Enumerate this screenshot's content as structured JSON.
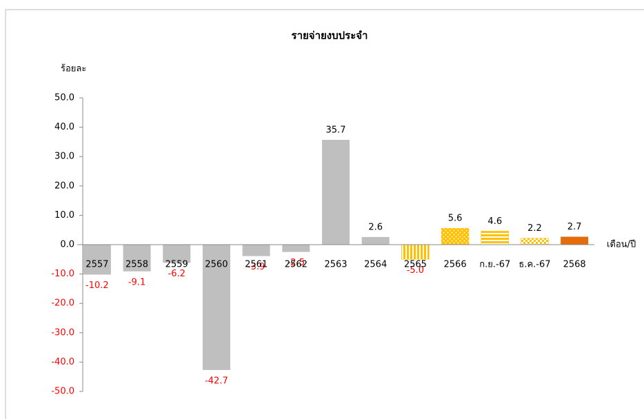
{
  "chart_data": {
    "type": "bar",
    "title": "รายจ่ายงบประจำ",
    "y_label": "ร้อยละ",
    "x_label": "เดือน/ปี",
    "categories": [
      "2557",
      "2558",
      "2559",
      "2560",
      "2561",
      "2562",
      "2563",
      "2564",
      "2565",
      "2566",
      "ก.ย.-67",
      "ธ.ค.-67",
      "2568"
    ],
    "values": [
      -10.2,
      -9.1,
      -6.2,
      -42.7,
      -3.9,
      -2.5,
      35.7,
      2.6,
      -5.0,
      5.6,
      4.6,
      2.2,
      2.7
    ],
    "value_labels": [
      "-10.2",
      "-9.1",
      "-6.2",
      "-42.7",
      "-3.9",
      "-2.5",
      "35.7",
      "2.6",
      "-5.0",
      "5.6",
      "4.6",
      "2.2",
      "2.7"
    ],
    "colors": [
      "#bfbfbf",
      "#bfbfbf",
      "#bfbfbf",
      "#bfbfbf",
      "#bfbfbf",
      "#bfbfbf",
      "#bfbfbf",
      "#bfbfbf",
      "#ffc000",
      "#ffc000",
      "#ffc000",
      "#ffc000",
      "#e46c0a"
    ],
    "patterns": [
      "solid",
      "solid",
      "solid",
      "solid",
      "solid",
      "solid",
      "solid",
      "solid",
      "vertical-stripes",
      "dots",
      "horizontal-stripes",
      "checker",
      "solid"
    ],
    "ylim": [
      -50,
      50
    ],
    "yticks": [
      {
        "value": -50,
        "label": "-50.0"
      },
      {
        "value": -40,
        "label": "-40.0"
      },
      {
        "value": -30,
        "label": "-30.0"
      },
      {
        "value": -20,
        "label": "-20.0"
      },
      {
        "value": -10,
        "label": "-10.0"
      },
      {
        "value": 0,
        "label": "0.0"
      },
      {
        "value": 10,
        "label": "10.0"
      },
      {
        "value": 20,
        "label": "20.0"
      },
      {
        "value": 30,
        "label": "30.0"
      },
      {
        "value": 40,
        "label": "40.0"
      },
      {
        "value": 50,
        "label": "50.0"
      }
    ]
  }
}
